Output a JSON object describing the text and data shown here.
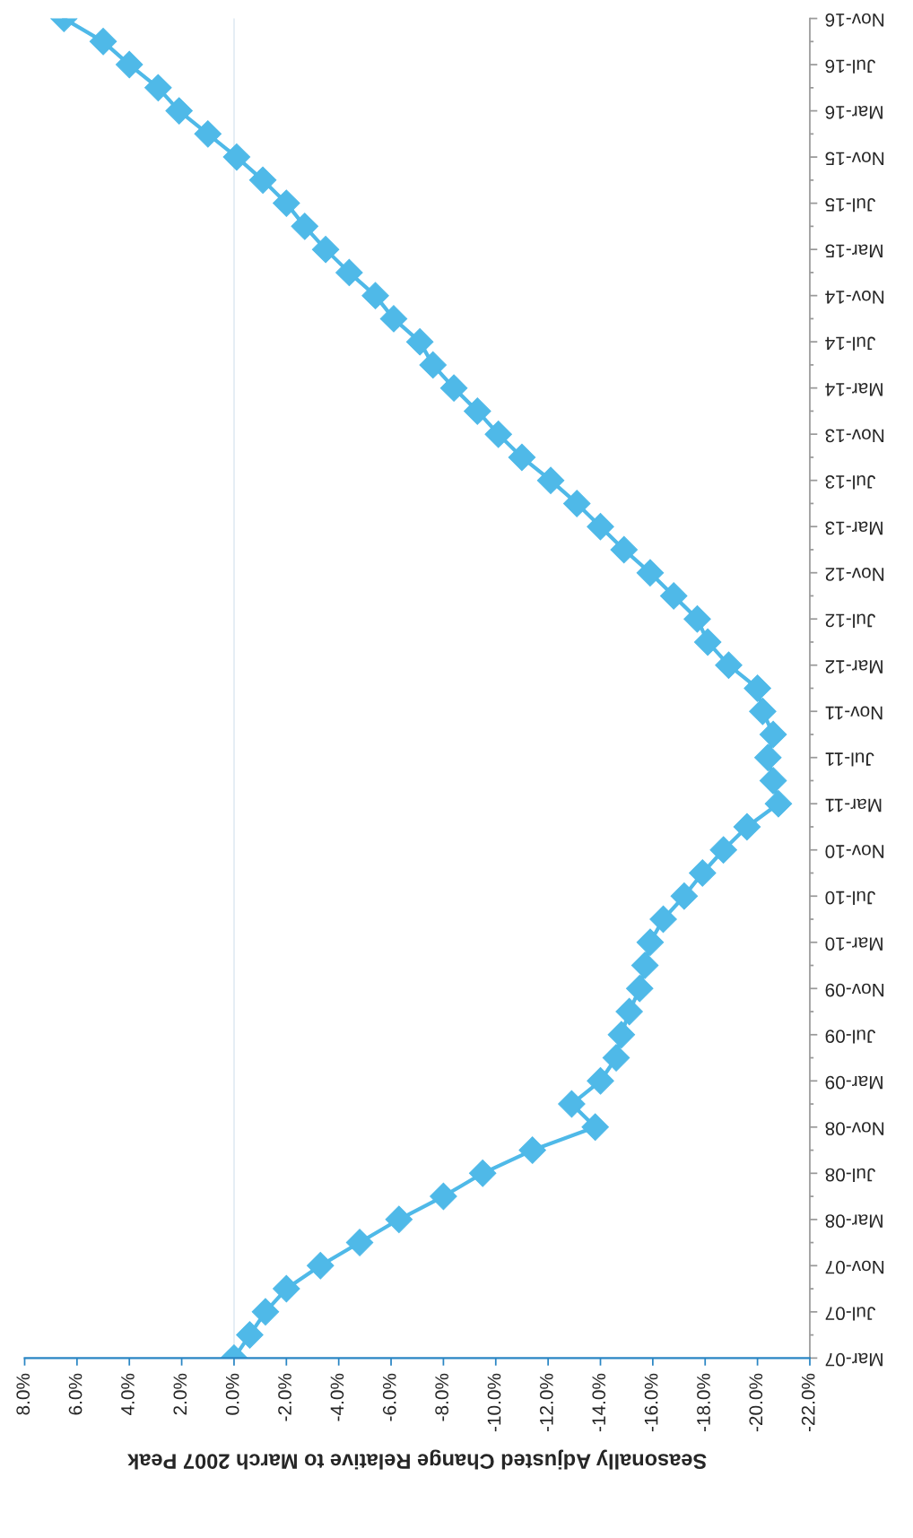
{
  "chart_data": {
    "type": "line",
    "orientation": "horizontal",
    "xlabel": "Seasonally Adjusted Change Relative to March 2007 Peak",
    "categories": [
      "Nov-16",
      null,
      "Jul-16",
      null,
      "Mar-16",
      null,
      "Nov-15",
      null,
      "Jul-15",
      null,
      "Mar-15",
      null,
      "Nov-14",
      null,
      "Jul-14",
      null,
      "Mar-14",
      null,
      "Nov-13",
      null,
      "Jul-13",
      null,
      "Mar-13",
      null,
      "Nov-12",
      null,
      "Jul-12",
      null,
      "Mar-12",
      null,
      "Nov-11",
      null,
      "Jul-11",
      null,
      "Mar-11",
      null,
      "Nov-10",
      null,
      "Jul-10",
      null,
      "Mar-10",
      null,
      "Nov-09",
      null,
      "Jul-09",
      null,
      "Mar-09",
      null,
      "Nov-08",
      null,
      "Jul-08",
      null,
      "Mar-08",
      null,
      "Nov-07",
      null,
      "Jul-07",
      null,
      "Mar-07"
    ],
    "series": [
      {
        "color": "#4fb9e8",
        "values": [
          6.5,
          5.0,
          4.0,
          2.9,
          2.1,
          1.0,
          -0.1,
          -1.1,
          -2.0,
          -2.7,
          -3.5,
          -4.4,
          -5.4,
          -6.1,
          -7.1,
          -7.6,
          -8.4,
          -9.3,
          -10.1,
          -11.0,
          -12.1,
          -13.1,
          -14.0,
          -14.9,
          -15.9,
          -16.8,
          -17.7,
          -18.1,
          -18.9,
          -20.0,
          -20.2,
          -20.6,
          -20.4,
          -20.6,
          -20.8,
          -19.6,
          -18.7,
          -17.9,
          -17.2,
          -16.4,
          -15.9,
          -15.7,
          -15.5,
          -15.1,
          -14.8,
          -14.6,
          -14.0,
          -12.9,
          -13.8,
          -11.4,
          -9.5,
          -8.0,
          -6.3,
          -4.8,
          -3.3,
          -2.0,
          -1.2,
          -0.6,
          0
        ]
      }
    ],
    "marker": "diamond",
    "line_style": "solid",
    "xlim": [
      8,
      -22
    ],
    "xticks": [
      {
        "value": 8,
        "label": "8.0%"
      },
      {
        "value": 6,
        "label": "6.0%"
      },
      {
        "value": 4,
        "label": "4.0%"
      },
      {
        "value": 2,
        "label": "2.0%"
      },
      {
        "value": 0,
        "label": "0.0%"
      },
      {
        "value": -2,
        "label": "-2.0%"
      },
      {
        "value": -4,
        "label": "-4.0%"
      },
      {
        "value": -6,
        "label": "-6.0%"
      },
      {
        "value": -8,
        "label": "-8.0%"
      },
      {
        "value": -10,
        "label": "-10.0%"
      },
      {
        "value": -12,
        "label": "-12.0%"
      },
      {
        "value": -14,
        "label": "-14.0%"
      },
      {
        "value": -16,
        "label": "-16.0%"
      },
      {
        "value": -18,
        "label": "-18.0%"
      },
      {
        "value": -20,
        "label": "-20.0%"
      },
      {
        "value": -22,
        "label": "-22.0%"
      }
    ],
    "ref_lines": [
      {
        "axis": "x",
        "value": 0,
        "color": "#e6eef5"
      }
    ]
  }
}
